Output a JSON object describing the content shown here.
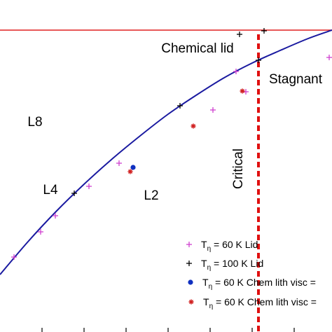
{
  "chart_data": {
    "type": "scatter",
    "title": "",
    "xlabel": "",
    "ylabel": "",
    "grid": false,
    "legend_placement": "bottom-right",
    "colors": {
      "boundary_curve": "#1a1aa0",
      "upper_limit": "#e02020",
      "critical_line": "#e01010",
      "lid_60K": "#d040d0",
      "lid_100K": "#000000",
      "chem_blue": "#1030c0",
      "chem_red": "#d02020"
    },
    "xlim": [
      0,
      474
    ],
    "ylim": [
      0,
      474
    ],
    "x_ticks": [
      60,
      120,
      180,
      240,
      300,
      360,
      420
    ],
    "boundary_curve": [
      [
        0,
        392
      ],
      [
        40,
        345
      ],
      [
        80,
        302
      ],
      [
        120,
        263
      ],
      [
        160,
        227
      ],
      [
        200,
        194
      ],
      [
        240,
        163
      ],
      [
        280,
        136
      ],
      [
        320,
        111
      ],
      [
        360,
        90
      ],
      [
        400,
        72
      ],
      [
        440,
        55
      ],
      [
        474,
        43
      ]
    ],
    "upper_limit_y": 43,
    "critical_x": 369,
    "series": [
      {
        "name": "Tη = 60 K Lid",
        "marker": "plus",
        "color": "#d040d0",
        "points": [
          [
            20,
            367
          ],
          [
            58,
            331
          ],
          [
            79,
            308
          ],
          [
            127,
            266
          ],
          [
            170,
            233
          ],
          [
            304,
            157
          ],
          [
            351,
            131
          ],
          [
            337,
            102
          ],
          [
            470,
            82
          ]
        ]
      },
      {
        "name": "Tη = 100 K Lid",
        "marker": "plus",
        "color": "#000000",
        "points": [
          [
            106,
            276
          ],
          [
            257,
            151
          ],
          [
            342,
            49
          ],
          [
            377,
            44
          ],
          [
            369,
            86
          ]
        ]
      },
      {
        "name": "Tη = 60 K Chem lith visc =",
        "marker": "dot",
        "color": "#1030c0",
        "points": [
          [
            190,
            239
          ]
        ]
      },
      {
        "name": "Tη = 60 K Chem lith visc =",
        "marker": "asterisk",
        "color": "#d02020",
        "points": [
          [
            186,
            245
          ],
          [
            276,
            180
          ],
          [
            346,
            130
          ]
        ]
      }
    ],
    "annotations": [
      {
        "text": "Chemical lid",
        "x": 282,
        "y": 75
      },
      {
        "text": "Stagnant",
        "x": 422,
        "y": 119
      },
      {
        "text": "L8",
        "x": 50,
        "y": 180
      },
      {
        "text": "L4",
        "x": 72,
        "y": 277
      },
      {
        "text": "L2",
        "x": 216,
        "y": 285
      },
      {
        "text": "Critical",
        "x": 346,
        "y": 241,
        "rotate": -90
      }
    ],
    "legend": [
      {
        "marker": "plus",
        "color": "#d040d0",
        "t": "T",
        "sub": "η",
        "text": " = 60 K Lid"
      },
      {
        "marker": "plus",
        "color": "#000000",
        "t": "T",
        "sub": "η",
        "text": " = 100 K Lid"
      },
      {
        "marker": "dot",
        "color": "#1030c0",
        "t": "T",
        "sub": "η",
        "text": " = 60 K Chem lith visc ="
      },
      {
        "marker": "asterisk",
        "color": "#d02020",
        "t": "T",
        "sub": "η",
        "text": " = 60 K Chem lith visc ="
      }
    ]
  }
}
